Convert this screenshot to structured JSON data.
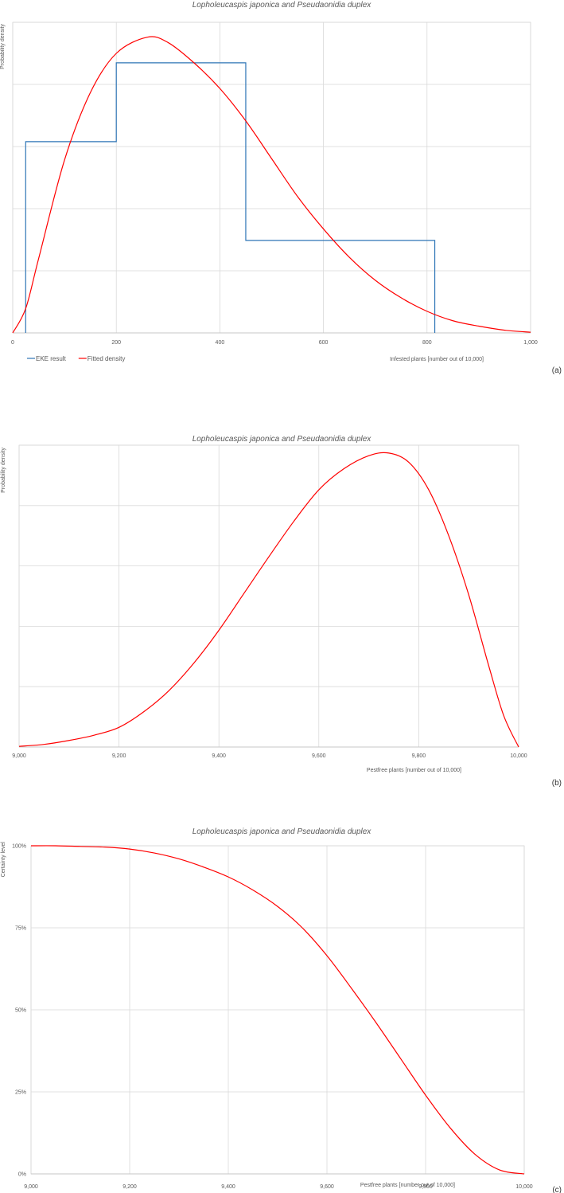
{
  "chart_data": [
    {
      "id": "a",
      "type": "line",
      "panel_label": "(a)",
      "title": "Lopholeucaspis japonica and Pseudaonidia duplex",
      "xlabel": "Infested plants [number out of 10,000]",
      "ylabel": "Probability density",
      "xlim": [
        0,
        1000
      ],
      "ylim": [
        0,
        0.0023
      ],
      "x_ticks": [
        0,
        200,
        400,
        600,
        800,
        1000
      ],
      "x_tick_labels": [
        "0",
        "200",
        "400",
        "600",
        "800",
        "1,000"
      ],
      "y_gridlines": 5,
      "legend": "bottom-left",
      "series": [
        {
          "name": "EKE result",
          "color": "#2e75b6",
          "step": true,
          "x": [
            25,
            25,
            200,
            200,
            450,
            450,
            815,
            815
          ],
          "y": [
            0,
            0.001416,
            0.001416,
            0.002,
            0.002,
            0.000685,
            0.000685,
            0
          ]
        },
        {
          "name": "Fitted density",
          "color": "#ff0000",
          "x": [
            0,
            25,
            50,
            100,
            150,
            200,
            260,
            300,
            350,
            400,
            450,
            500,
            550,
            600,
            650,
            700,
            750,
            800,
            850,
            900,
            950,
            1000
          ],
          "y": [
            0,
            0.00018,
            0.00055,
            0.00128,
            0.00178,
            0.00207,
            0.00219,
            0.00215,
            0.002,
            0.00181,
            0.00157,
            0.00129,
            0.00101,
            0.00077,
            0.00056,
            0.00039,
            0.00026,
            0.00016,
            9e-05,
            5e-05,
            2e-05,
            5e-06
          ]
        }
      ]
    },
    {
      "id": "b",
      "type": "line",
      "panel_label": "(b)",
      "title": "Lopholeucaspis japonica and Pseudaonidia duplex",
      "xlabel": "Pestfree plants [number out of 10,000]",
      "ylabel": "Probability density",
      "xlim": [
        9000,
        10000
      ],
      "ylim": [
        0,
        0.0023
      ],
      "x_ticks": [
        9000,
        9200,
        9400,
        9600,
        9800,
        10000
      ],
      "x_tick_labels": [
        "9,000",
        "9,200",
        "9,400",
        "9,600",
        "9,800",
        "10,000"
      ],
      "y_gridlines": 5,
      "series": [
        {
          "color": "#ff0000",
          "x": [
            9000,
            9050,
            9100,
            9150,
            9200,
            9250,
            9300,
            9350,
            9400,
            9450,
            9500,
            9550,
            9600,
            9650,
            9700,
            9740,
            9780,
            9820,
            9860,
            9900,
            9940,
            9970,
            10000
          ],
          "y": [
            5e-06,
            2e-05,
            5e-05,
            9e-05,
            0.00015,
            0.00027,
            0.00043,
            0.00064,
            0.00089,
            0.00117,
            0.00145,
            0.00172,
            0.00196,
            0.00212,
            0.00222,
            0.00224,
            0.00217,
            0.00196,
            0.00161,
            0.00116,
            0.00062,
            0.00024,
            0
          ]
        }
      ]
    },
    {
      "id": "c",
      "type": "line",
      "panel_label": "(c)",
      "title": "Lopholeucaspis japonica and Pseudaonidia duplex",
      "xlabel": "Pestfree plants [number out of 10,000]",
      "ylabel": "Certainty level",
      "xlim": [
        9000,
        10000
      ],
      "ylim": [
        0,
        1
      ],
      "x_ticks": [
        9000,
        9200,
        9400,
        9600,
        9800,
        10000
      ],
      "x_tick_labels": [
        "9,000",
        "9,200",
        "9,400",
        "9,600",
        "9,800",
        "10,000"
      ],
      "y_ticks": [
        0,
        0.25,
        0.5,
        0.75,
        1
      ],
      "y_tick_labels": [
        "0%",
        "25%",
        "50%",
        "75%",
        "100%"
      ],
      "series": [
        {
          "color": "#ff0000",
          "x": [
            9000,
            9050,
            9100,
            9150,
            9200,
            9250,
            9300,
            9350,
            9400,
            9450,
            9500,
            9550,
            9600,
            9650,
            9700,
            9750,
            9800,
            9850,
            9900,
            9950,
            10000
          ],
          "y": [
            1.0,
            1.0,
            0.998,
            0.996,
            0.99,
            0.978,
            0.96,
            0.935,
            0.905,
            0.865,
            0.815,
            0.75,
            0.665,
            0.565,
            0.46,
            0.35,
            0.24,
            0.14,
            0.06,
            0.012,
            0
          ]
        }
      ]
    }
  ]
}
